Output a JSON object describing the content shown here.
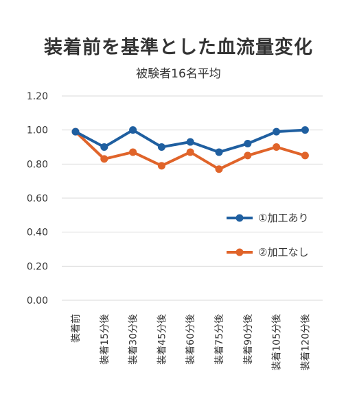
{
  "chart_data": {
    "type": "line",
    "title": "装着前を基準とした血流量変化",
    "subtitle": "被験者16名平均",
    "xlabel": "",
    "ylabel": "",
    "categories": [
      "装着前",
      "装着15分後",
      "装着30分後",
      "装着45分後",
      "装着60分後",
      "装着75分後",
      "装着90分後",
      "装着105分後",
      "装着120分後"
    ],
    "yticks": [
      "0.00",
      "0.20",
      "0.40",
      "0.60",
      "0.80",
      "1.00",
      "1.20"
    ],
    "ylim": [
      0,
      1.2
    ],
    "grid": true,
    "legend_position": "right",
    "series": [
      {
        "name": "①加工あり",
        "color": "#1f5fa0",
        "values": [
          0.99,
          0.9,
          1.0,
          0.9,
          0.93,
          0.87,
          0.92,
          0.99,
          1.0
        ]
      },
      {
        "name": "②加工なし",
        "color": "#e0642a",
        "values": [
          0.99,
          0.83,
          0.87,
          0.79,
          0.87,
          0.77,
          0.85,
          0.9,
          0.85
        ]
      }
    ]
  }
}
